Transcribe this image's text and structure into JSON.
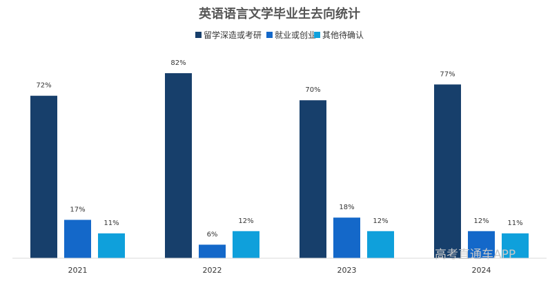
{
  "chart_data": {
    "type": "bar",
    "title": "英语语言文学毕业生去向统计",
    "categories": [
      "2021",
      "2022",
      "2023",
      "2024"
    ],
    "series": [
      {
        "name": "留学深造或考研",
        "color": "#173f6b",
        "values": [
          72,
          82,
          70,
          77
        ]
      },
      {
        "name": "就业或创业",
        "color": "#1468c9",
        "values": [
          17,
          6,
          18,
          12
        ]
      },
      {
        "name": "其他待确认",
        "color": "#0fa0db",
        "values": [
          11,
          12,
          12,
          11
        ]
      }
    ],
    "value_suffix": "%",
    "ylim": [
      0,
      82
    ],
    "legend_position": "top-center",
    "grid": false
  },
  "watermark": "高考直通车APP"
}
